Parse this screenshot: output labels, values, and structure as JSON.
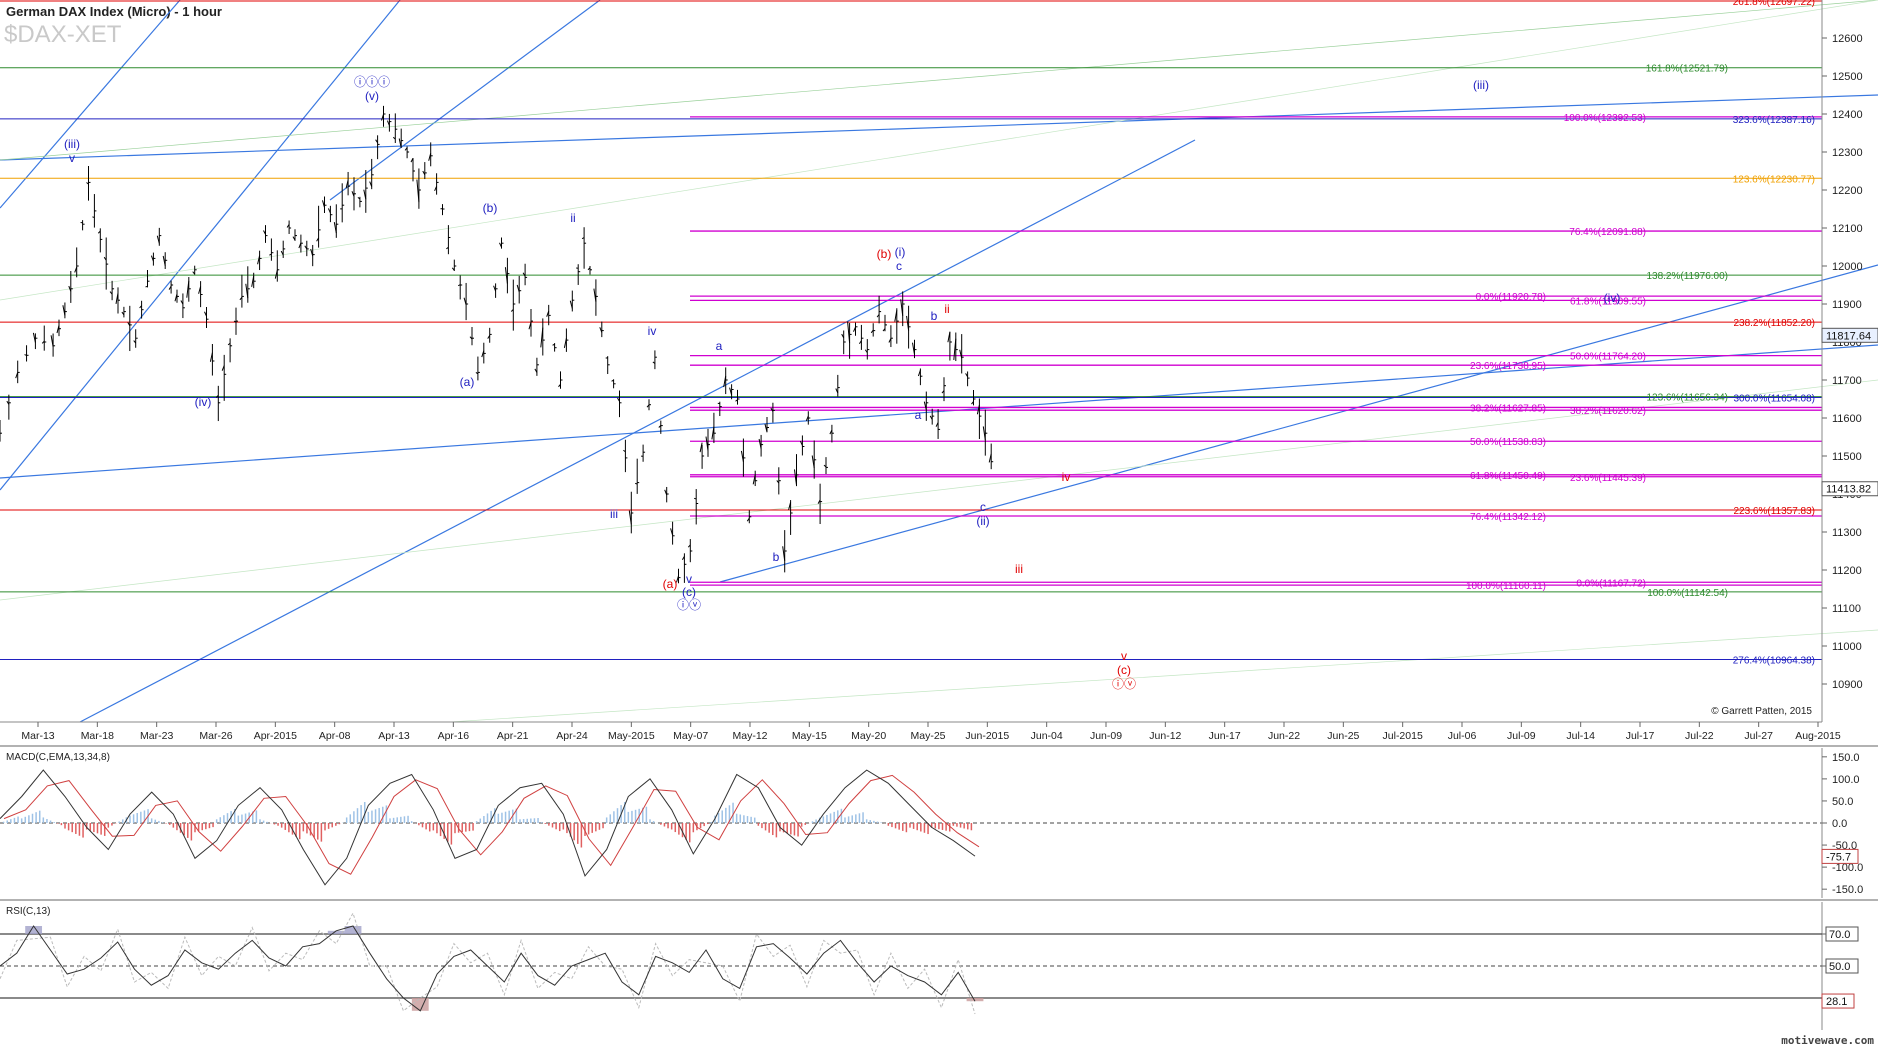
{
  "header": {
    "title": "German DAX Index (Micro) - 1 hour",
    "symbol": "$DAX-XET"
  },
  "footer": {
    "copyright": "© Garrett Patten, 2015",
    "watermark": "motivewave.com"
  },
  "colors": {
    "background": "#ffffff",
    "bar": "#000000",
    "green": "#2e8b2e",
    "red": "#e00000",
    "blue": "#2020c0",
    "magenta": "#d000d0",
    "orange": "#f0a000",
    "channel_blue": "#3a78e0",
    "macd_pos": "#9ec2e6",
    "macd_neg": "#e06060",
    "rsi_fill": "#a0a0c8",
    "rsi_fill_low": "#c89a9a"
  },
  "chart_data": [
    {
      "type": "line",
      "panel": "price",
      "title": "German DAX Index (Micro) - 1 hour",
      "ylim": [
        10800,
        12700
      ],
      "y_ticks": [
        10900,
        11000,
        11100,
        11200,
        11300,
        11400,
        11500,
        11600,
        11700,
        11800,
        11900,
        12000,
        12100,
        12200,
        12300,
        12400,
        12500,
        12600
      ],
      "x_tick_labels": [
        "Mar-13",
        "Mar-18",
        "Mar-23",
        "Mar-26",
        "Apr-2015",
        "Apr-08",
        "Apr-13",
        "Apr-16",
        "Apr-21",
        "Apr-24",
        "May-2015",
        "May-07",
        "May-12",
        "May-15",
        "May-20",
        "May-25",
        "Jun-2015",
        "Jun-04",
        "Jun-09",
        "Jun-12",
        "Jun-17",
        "Jun-22",
        "Jun-25",
        "Jul-2015",
        "Jul-06",
        "Jul-09",
        "Jul-14",
        "Jul-17",
        "Jul-22",
        "Jul-27",
        "Aug-2015"
      ],
      "price_path": [
        [
          0,
          11560
        ],
        [
          3,
          11720
        ],
        [
          6,
          11810
        ],
        [
          9,
          11790
        ],
        [
          11,
          11880
        ],
        [
          13,
          12000
        ],
        [
          15,
          12220
        ],
        [
          17,
          12070
        ],
        [
          19,
          11940
        ],
        [
          21,
          11880
        ],
        [
          23,
          11810
        ],
        [
          25,
          11960
        ],
        [
          27,
          12080
        ],
        [
          29,
          11950
        ],
        [
          31,
          11890
        ],
        [
          33,
          11990
        ],
        [
          35,
          11860
        ],
        [
          37,
          11640
        ],
        [
          39,
          11790
        ],
        [
          41,
          11920
        ],
        [
          43,
          11960
        ],
        [
          45,
          12080
        ],
        [
          47,
          11990
        ],
        [
          49,
          12100
        ],
        [
          51,
          12060
        ],
        [
          53,
          12030
        ],
        [
          55,
          12160
        ],
        [
          57,
          12110
        ],
        [
          59,
          12210
        ],
        [
          61,
          12170
        ],
        [
          63,
          12240
        ],
        [
          65,
          12400
        ],
        [
          67,
          12360
        ],
        [
          69,
          12300
        ],
        [
          71,
          12200
        ],
        [
          73,
          12290
        ],
        [
          75,
          12150
        ],
        [
          77,
          12000
        ],
        [
          79,
          11900
        ],
        [
          81,
          11720
        ],
        [
          83,
          11820
        ],
        [
          85,
          12060
        ],
        [
          87,
          11900
        ],
        [
          89,
          11970
        ],
        [
          91,
          11740
        ],
        [
          93,
          11870
        ],
        [
          95,
          11700
        ],
        [
          97,
          11910
        ],
        [
          99,
          12060
        ],
        [
          101,
          11920
        ],
        [
          103,
          11740
        ],
        [
          105,
          11640
        ],
        [
          107,
          11350
        ],
        [
          109,
          11510
        ],
        [
          111,
          11760
        ],
        [
          113,
          11400
        ],
        [
          115,
          11180
        ],
        [
          117,
          11250
        ],
        [
          119,
          11500
        ],
        [
          121,
          11560
        ],
        [
          123,
          11700
        ],
        [
          125,
          11650
        ],
        [
          127,
          11340
        ],
        [
          129,
          11530
        ],
        [
          131,
          11620
        ],
        [
          133,
          11250
        ],
        [
          135,
          11450
        ],
        [
          137,
          11600
        ],
        [
          139,
          11380
        ],
        [
          141,
          11560
        ],
        [
          143,
          11800
        ],
        [
          145,
          11840
        ],
        [
          147,
          11780
        ],
        [
          149,
          11880
        ],
        [
          151,
          11810
        ],
        [
          153,
          11900
        ],
        [
          155,
          11780
        ],
        [
          157,
          11640
        ],
        [
          159,
          11570
        ],
        [
          161,
          11800
        ],
        [
          163,
          11760
        ],
        [
          165,
          11650
        ],
        [
          167,
          11560
        ],
        [
          169,
          11410
        ]
      ],
      "levels": [
        {
          "label": "261.8%(12697.22)",
          "value": 12697.22,
          "color": "#e00000",
          "span": "full"
        },
        {
          "label": "161.8%(12521.79)",
          "value": 12521.79,
          "color": "#2e8b2e",
          "span": "full"
        },
        {
          "label": "100.0%(12392.53)",
          "value": 12392.53,
          "color": "#d000d0",
          "span": "partial"
        },
        {
          "label": "323.6%(12387.16)",
          "value": 12387.16,
          "color": "#2020c0",
          "span": "full"
        },
        {
          "label": "123.6%(12230.77)",
          "value": 12230.77,
          "color": "#f0a000",
          "span": "full"
        },
        {
          "label": "76.4%(12091.88)",
          "value": 12091.88,
          "color": "#d000d0",
          "span": "partial"
        },
        {
          "label": "138.2%(11976.00)",
          "value": 11976.0,
          "color": "#2e8b2e",
          "span": "full"
        },
        {
          "label": "0.0%(11920.78)",
          "value": 11920.78,
          "color": "#d000d0",
          "span": "partial"
        },
        {
          "label": "61.8%(11909.55)",
          "value": 11909.55,
          "color": "#d000d0",
          "span": "partial"
        },
        {
          "label": "238.2%(11852.20)",
          "value": 11852.2,
          "color": "#e00000",
          "span": "full"
        },
        {
          "label": "50.0%(11764.20)",
          "value": 11764.2,
          "color": "#d000d0",
          "span": "partial"
        },
        {
          "label": "23.6%(11738.95)",
          "value": 11738.95,
          "color": "#d000d0",
          "span": "partial"
        },
        {
          "label": "123.6%(11656.34)",
          "value": 11656.34,
          "color": "#2e8b2e",
          "span": "full"
        },
        {
          "label": "300.0%(11654.08)",
          "value": 11654.08,
          "color": "#2020c0",
          "span": "full"
        },
        {
          "label": "38.2%(11627.85)",
          "value": 11627.85,
          "color": "#d000d0",
          "span": "partial"
        },
        {
          "label": "38.2%(11620.62)",
          "value": 11620.62,
          "color": "#d000d0",
          "span": "partial"
        },
        {
          "label": "50.0%(11538.83)",
          "value": 11538.83,
          "color": "#d000d0",
          "span": "partial"
        },
        {
          "label": "61.8%(11450.49)",
          "value": 11450.49,
          "color": "#d000d0",
          "span": "partial"
        },
        {
          "label": "23.6%(11445.39)",
          "value": 11445.39,
          "color": "#d000d0",
          "span": "partial"
        },
        {
          "label": "223.6%(11357.83)",
          "value": 11357.83,
          "color": "#e00000",
          "span": "full"
        },
        {
          "label": "76.4%(11342.12)",
          "value": 11342.12,
          "color": "#d000d0",
          "span": "partial"
        },
        {
          "label": "100.0%(11160.11)",
          "value": 11160.11,
          "color": "#d000d0",
          "span": "partial"
        },
        {
          "label": "0.0%(11167.72)",
          "value": 11167.72,
          "color": "#d000d0",
          "span": "partial"
        },
        {
          "label": "100.0%(11142.54)",
          "value": 11142.54,
          "color": "#2e8b2e",
          "span": "full"
        },
        {
          "label": "276.4%(10964.38)",
          "value": 10964.38,
          "color": "#2020c0",
          "span": "full"
        }
      ],
      "current_price_tags": [
        {
          "label": "11817.64",
          "value": 11817.64
        },
        {
          "label": "11413.82",
          "value": 11413.82
        }
      ],
      "wave_labels": [
        {
          "text": "(iii)",
          "color": "#2020c0"
        },
        {
          "text": "v",
          "color": "#2020c0"
        },
        {
          "text": "ⓘⓘⓘ",
          "color": "#2020c0"
        },
        {
          "text": "(v)",
          "color": "#2020c0"
        },
        {
          "text": "(iv)",
          "color": "#2020c0"
        },
        {
          "text": "(b)",
          "color": "#2020c0"
        },
        {
          "text": "ii",
          "color": "#2020c0"
        },
        {
          "text": "(a)",
          "color": "#2020c0"
        },
        {
          "text": "iv",
          "color": "#2020c0"
        },
        {
          "text": "iii",
          "color": "#2020c0"
        },
        {
          "text": "a",
          "color": "#2020c0"
        },
        {
          "text": "v",
          "color": "#2020c0"
        },
        {
          "text": "(c)",
          "color": "#2020c0"
        },
        {
          "text": "ⓘⓥ",
          "color": "#2020c0"
        },
        {
          "text": "(a)",
          "color": "#e00000"
        },
        {
          "text": "b",
          "color": "#2020c0"
        },
        {
          "text": "(b)",
          "color": "#e00000"
        },
        {
          "text": "(i)",
          "color": "#2020c0"
        },
        {
          "text": "c",
          "color": "#2020c0"
        },
        {
          "text": "b",
          "color": "#2020c0"
        },
        {
          "text": "ii",
          "color": "#e00000"
        },
        {
          "text": "a",
          "color": "#2020c0"
        },
        {
          "text": "c",
          "color": "#2020c0"
        },
        {
          "text": "(ii)",
          "color": "#2020c0"
        },
        {
          "text": "iv",
          "color": "#e00000"
        },
        {
          "text": "iii",
          "color": "#e00000"
        },
        {
          "text": "v",
          "color": "#e00000"
        },
        {
          "text": "(c)",
          "color": "#e00000"
        },
        {
          "text": "ⓘⓥ",
          "color": "#e00000"
        },
        {
          "text": "(iii)",
          "color": "#2020c0"
        },
        {
          "text": "(iv)",
          "color": "#2020c0"
        }
      ]
    },
    {
      "type": "area",
      "panel": "macd",
      "title": "MACD(C,EMA,13,34,8)",
      "ylim": [
        -170,
        170
      ],
      "y_ticks": [
        150,
        100,
        50,
        0,
        -50,
        -100,
        -150
      ],
      "y_tick_labels": [
        "150.0",
        "100.0",
        "50.0",
        "0.0",
        "-50.0",
        "-100.0",
        "-150.0"
      ],
      "current_label": "-75.7",
      "macd_line": [
        10,
        60,
        120,
        60,
        -10,
        -60,
        20,
        70,
        20,
        -80,
        -40,
        40,
        80,
        30,
        -60,
        -140,
        -80,
        40,
        90,
        110,
        30,
        -80,
        -60,
        40,
        80,
        90,
        20,
        -120,
        -60,
        60,
        100,
        30,
        -70,
        10,
        110,
        80,
        -10,
        -50,
        20,
        80,
        120,
        90,
        40,
        -10,
        -40,
        -75
      ]
    },
    {
      "type": "line",
      "panel": "rsi",
      "title": "RSI(C,13)",
      "ylim": [
        10,
        90
      ],
      "y_ticks": [
        70,
        50
      ],
      "y_tick_labels": [
        "70.0",
        "50.0"
      ],
      "levels": [
        70,
        50,
        30
      ],
      "current_label": "28.1",
      "rsi_line": [
        50,
        58,
        75,
        60,
        45,
        48,
        55,
        65,
        48,
        38,
        44,
        60,
        52,
        48,
        58,
        66,
        55,
        50,
        62,
        64,
        72,
        75,
        58,
        42,
        30,
        22,
        45,
        56,
        60,
        50,
        40,
        58,
        44,
        38,
        50,
        54,
        58,
        40,
        32,
        56,
        52,
        46,
        60,
        42,
        36,
        62,
        64,
        55,
        45,
        58,
        66,
        52,
        40,
        50,
        44,
        40,
        32,
        46,
        28
      ]
    }
  ]
}
